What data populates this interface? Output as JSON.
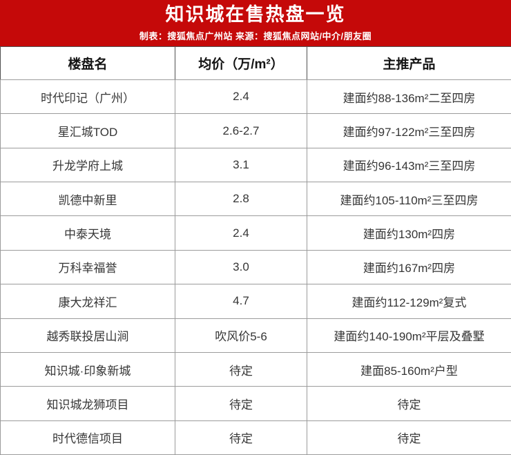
{
  "banner": {
    "title": "知识城在售热盘一览",
    "subtitle": "制表：搜狐焦点广州站  来源：搜狐焦点网站/中介/朋友圈"
  },
  "colors": {
    "banner_bg": "#c50909",
    "banner_text": "#ffffff",
    "grid_border": "#9b9b9b",
    "header_border": "#4f4f4f",
    "header_text": "#141414",
    "cell_text": "#353535"
  },
  "chart_data": {
    "type": "table",
    "title": "知识城在售热盘一览",
    "subtitle": "制表：搜狐焦点广州站  来源：搜狐焦点网站/中介/朋友圈",
    "columns": [
      "楼盘名",
      "均价（万/m²）",
      "主推产品"
    ],
    "rows": [
      [
        "时代印记（广州）",
        "2.4",
        "建面约88-136m²二至四房"
      ],
      [
        "星汇城TOD",
        "2.6-2.7",
        "建面约97-122m²三至四房"
      ],
      [
        "升龙学府上城",
        "3.1",
        "建面约96-143m²三至四房"
      ],
      [
        "凯德中新里",
        "2.8",
        "建面约105-110m²三至四房"
      ],
      [
        "中泰天境",
        "2.4",
        "建面约130m²四房"
      ],
      [
        "万科幸福誉",
        "3.0",
        "建面约167m²四房"
      ],
      [
        "康大龙祥汇",
        "4.7",
        "建面约112-129m²复式"
      ],
      [
        "越秀联投居山涧",
        "吹风价5-6",
        "建面约140-190m²平层及叠墅"
      ],
      [
        "知识城·印象新城",
        "待定",
        "建面85-160m²户型"
      ],
      [
        "知识城龙狮项目",
        "待定",
        "待定"
      ],
      [
        "时代德信项目",
        "待定",
        "待定"
      ]
    ]
  }
}
